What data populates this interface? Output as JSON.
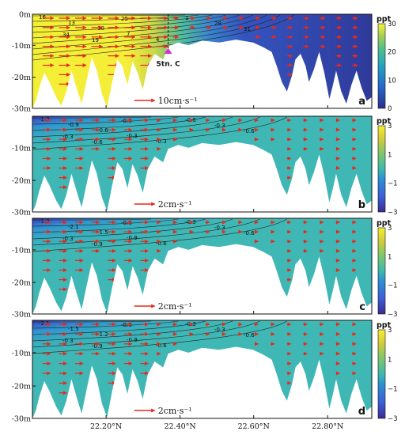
{
  "figure": {
    "x_tick_labels": [
      "22.20°N",
      "22.40°N",
      "22.60°N",
      "22.80°N"
    ],
    "station_label": "Stn. C"
  },
  "chart_data": [
    {
      "type": "heatmap",
      "panel_label": "a",
      "colorbar_unit": "ppt",
      "colorbar_range": [
        0,
        30
      ],
      "colorbar_ticks": [
        "30",
        "20",
        "10",
        "0"
      ],
      "y_ticks": [
        "0m",
        "-10m",
        "-20m",
        "-30m"
      ],
      "ylim": [
        -30,
        0
      ],
      "x_ticks": [
        "22.20°N",
        "22.40°N",
        "22.60°N",
        "22.80°N"
      ],
      "xlim": [
        22.0,
        22.92
      ],
      "reference_arrow_label": "10cm·s⁻¹",
      "contour_labels": [
        "16",
        "13",
        "10",
        "7",
        "4",
        "1",
        "28",
        "31",
        "34",
        "19",
        "25"
      ],
      "station": {
        "label": "Stn. C",
        "lat": 22.36
      },
      "colormap": [
        "#2b2f8c",
        "#2567c9",
        "#25a3c0",
        "#4fc08e",
        "#a3cc52",
        "#f7f23a"
      ]
    },
    {
      "type": "heatmap",
      "panel_label": "b",
      "colorbar_unit": "ppt",
      "colorbar_range": [
        -3,
        3
      ],
      "colorbar_ticks": [
        "3",
        "1",
        "−1",
        "−3"
      ],
      "y_ticks": [
        "",
        "-10m",
        "-20m",
        "-30m"
      ],
      "ylim": [
        -30,
        0
      ],
      "reference_arrow_label": "2cm·s⁻¹",
      "contour_labels": [
        "-1.2",
        "-0.9",
        "-0.6",
        "-0.3",
        "-0.3",
        "-0.6",
        "-0.3",
        "-0.6",
        "-0.3",
        "-0.6",
        "-0.3"
      ]
    },
    {
      "type": "heatmap",
      "panel_label": "c",
      "colorbar_unit": "ppt",
      "colorbar_range": [
        -3,
        3
      ],
      "colorbar_ticks": [
        "3",
        "1",
        "−1",
        "−3"
      ],
      "y_ticks": [
        "",
        "-10m",
        "-20m",
        "-30m"
      ],
      "ylim": [
        -30,
        0
      ],
      "reference_arrow_label": "2cm·s⁻¹",
      "contour_labels": [
        "-1.2",
        "-2.1",
        "-1.5",
        "-0.9",
        "-0.6",
        "-0.3",
        "-0.3",
        "-0.6",
        "-0.3",
        "-0.9",
        "-0.6"
      ]
    },
    {
      "type": "heatmap",
      "panel_label": "d",
      "colorbar_unit": "ppt",
      "colorbar_range": [
        -3,
        3
      ],
      "colorbar_ticks": [
        "3",
        "1",
        "−1",
        "−3"
      ],
      "y_ticks": [
        "",
        "-10m",
        "-20m",
        "-30m"
      ],
      "ylim": [
        -30,
        0
      ],
      "reference_arrow_label": "2cm·s⁻¹",
      "contour_labels": [
        "-2.1",
        "-1.5",
        "-1.2",
        "-0.9",
        "-0.6",
        "-0.3",
        "-0.3",
        "-0.6",
        "-0.3",
        "-0.9",
        "-0.6"
      ]
    }
  ]
}
